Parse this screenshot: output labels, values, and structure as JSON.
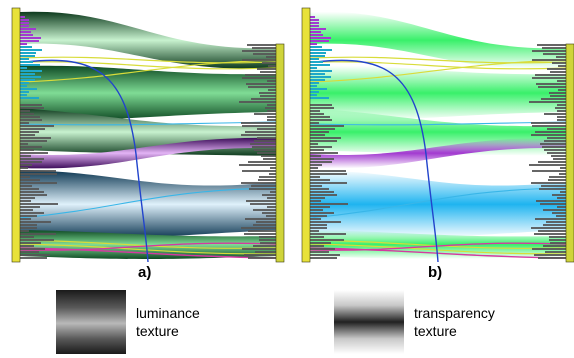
{
  "panels": [
    {
      "id": "a",
      "label": "a)",
      "shading": "luminance"
    },
    {
      "id": "b",
      "label": "b)",
      "shading": "transparency"
    }
  ],
  "legend": [
    {
      "id": "luminance",
      "line1": "luminance",
      "line2": "texture"
    },
    {
      "id": "transparency",
      "line1": "transparency",
      "line2": "texture"
    }
  ],
  "colors": {
    "axis_left": "#e8e23a",
    "axis_right": "#cfd43a",
    "bundle_green": "#2fc35a",
    "bundle_bright_green": "#39f06a",
    "bundle_violet": "#a23ad0",
    "bundle_blue": "#39b6e8",
    "bundle_magenta": "#d43a9a",
    "polyline_blue": "#2244cc",
    "histogram_gray": "#5a5a5a"
  }
}
